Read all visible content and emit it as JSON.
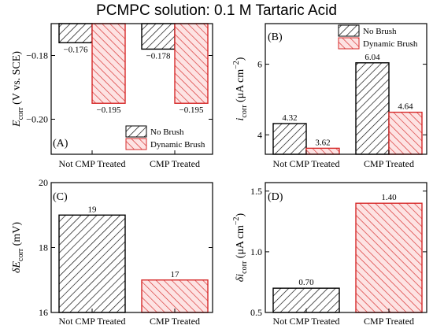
{
  "figure": {
    "title": "PCMPC solution: 0.1 M Tartaric Acid",
    "colors": {
      "no_brush": "#000000",
      "dynamic_brush": "#d62a2a",
      "dynamic_fill": "#fde3e3"
    }
  },
  "chart_data": [
    {
      "panel": "(A)",
      "type": "bar",
      "categories": [
        "Not CMP Treated",
        "CMP Treated"
      ],
      "series": [
        {
          "name": "No Brush",
          "values": [
            -0.176,
            -0.178
          ]
        },
        {
          "name": "Dynamic Brush",
          "values": [
            -0.195,
            -0.195
          ]
        }
      ],
      "value_labels": [
        [
          "-0.176",
          "-0.178"
        ],
        [
          "-0.195",
          "-0.195"
        ]
      ],
      "ylabel": {
        "symbol": "E",
        "sub": "corr",
        "units": " (V vs. SCE)"
      },
      "ylim": [
        -0.211,
        -0.17
      ],
      "yticks": [
        -0.18,
        -0.2
      ],
      "ytick_labels": [
        "-0.18",
        "-0.20"
      ],
      "bar_origin": "top",
      "legend": "bottom-right",
      "legend_entries": [
        "No Brush",
        "Dynamic Brush"
      ],
      "grid": false
    },
    {
      "panel": "(B)",
      "type": "bar",
      "categories": [
        "Not CMP Treated",
        "CMP Treated"
      ],
      "series": [
        {
          "name": "No Brush",
          "values": [
            4.32,
            6.04
          ]
        },
        {
          "name": "Dynamic Brush",
          "values": [
            3.62,
            4.64
          ]
        }
      ],
      "value_labels": [
        [
          "4.32",
          "6.04"
        ],
        [
          "3.62",
          "4.64"
        ]
      ],
      "ylabel": {
        "symbol": "i",
        "sub": "corr",
        "units": " (μA cm",
        "sup": "−2",
        "close": ")"
      },
      "ylim": [
        3.45,
        7.15
      ],
      "yticks": [
        4,
        6
      ],
      "ytick_labels": [
        "4",
        "6"
      ],
      "bar_origin": "bottom",
      "legend": "top-right",
      "legend_entries": [
        "No Brush",
        "Dynamic Brush"
      ],
      "grid": false
    },
    {
      "panel": "(C)",
      "type": "bar",
      "categories": [
        "Not CMP Treated",
        "CMP Treated"
      ],
      "series": [
        {
          "name": "",
          "values": [
            19,
            17
          ]
        }
      ],
      "value_labels": [
        [
          "19",
          "17"
        ]
      ],
      "ylabel": {
        "symbol": "δE",
        "sub": "corr",
        "units": " (mV)"
      },
      "ylim": [
        16,
        20
      ],
      "yticks": [
        16,
        18,
        20
      ],
      "ytick_labels": [
        "16",
        "18",
        "20"
      ],
      "bar_origin": "bottom",
      "grid": false
    },
    {
      "panel": "(D)",
      "type": "bar",
      "categories": [
        "Not CMP Treated",
        "CMP Treated"
      ],
      "series": [
        {
          "name": "",
          "values": [
            0.7,
            1.4
          ]
        }
      ],
      "value_labels": [
        [
          "0.70",
          "1.40"
        ]
      ],
      "ylabel": {
        "symbol": "δi",
        "sub": "corr",
        "units": " (μA cm",
        "sup": "−2",
        "close": ")"
      },
      "ylim": [
        0.5,
        1.57
      ],
      "yticks": [
        0.5,
        1.0,
        1.5
      ],
      "ytick_labels": [
        "0.5",
        "1.0",
        "1.5"
      ],
      "bar_origin": "bottom",
      "grid": false
    }
  ]
}
